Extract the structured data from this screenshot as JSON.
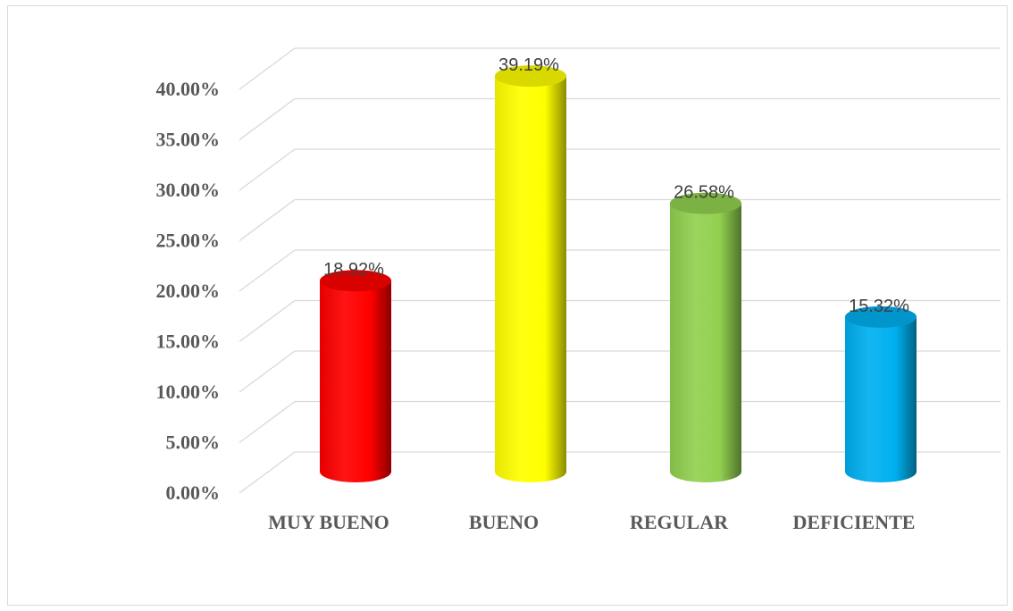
{
  "chart_data": {
    "type": "bar",
    "title": "",
    "xlabel": "",
    "ylabel": "",
    "categories": [
      "MUY BUENO",
      "BUENO",
      "REGULAR",
      "DEFICIENTE"
    ],
    "values": [
      18.92,
      39.19,
      26.58,
      15.32
    ],
    "data_labels": [
      "18.92%",
      "39.19%",
      "26.58%",
      "15.32%"
    ],
    "ylim": [
      0,
      40
    ],
    "yticks": [
      0,
      5,
      10,
      15,
      20,
      25,
      30,
      35,
      40
    ],
    "ytick_labels": [
      "0.00%",
      "5.00%",
      "10.00%",
      "15.00%",
      "20.00%",
      "25.00%",
      "30.00%",
      "35.00%",
      "40.00%"
    ],
    "grid": true,
    "legend": "none",
    "style": "3d-cylinder",
    "colors": [
      "#ff0000",
      "#ffff00",
      "#92d050",
      "#00b0f0"
    ]
  }
}
